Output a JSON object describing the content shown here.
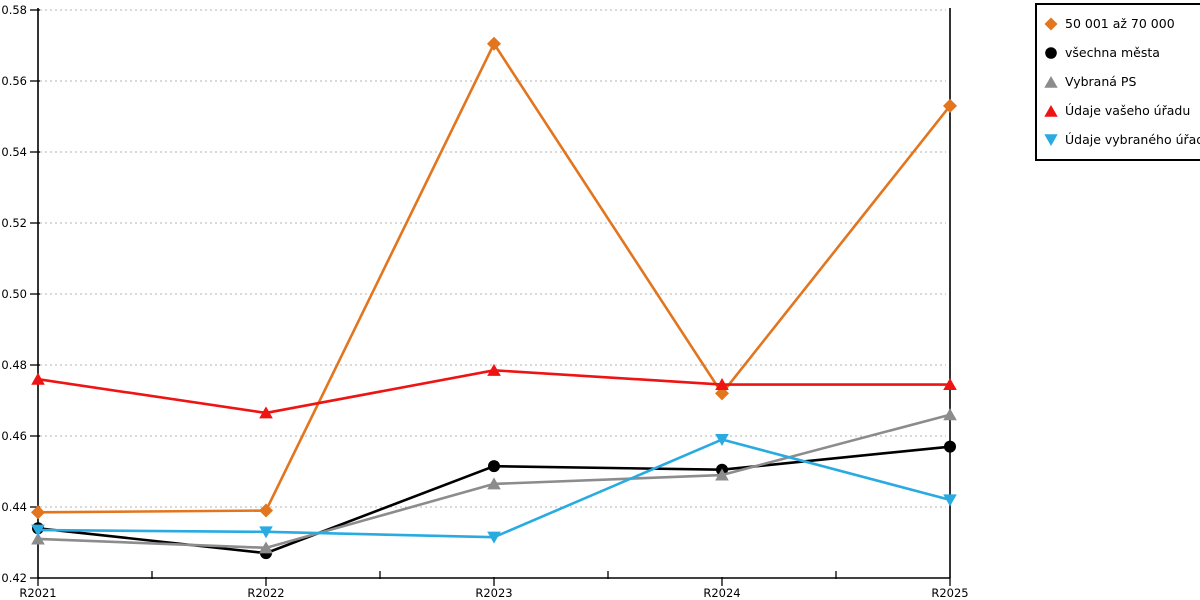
{
  "chart_data": {
    "type": "line",
    "title": "",
    "xlabel": "",
    "ylabel": "",
    "categories": [
      "R2021",
      "R2022",
      "R2023",
      "R2024",
      "R2025"
    ],
    "y_axis": {
      "min": 0.42,
      "max": 0.58,
      "tick_step": 0.02,
      "tick_labels": [
        "0.42",
        "0.44",
        "0.46",
        "0.48",
        "0.50",
        "0.52",
        "0.54",
        "0.56",
        "0.58"
      ]
    },
    "grid": "horizontal-dotted",
    "grid_color": "#b3b3b3",
    "axis_color": "#000000",
    "legend_position": "top-right",
    "legend_border_color": "#000000",
    "series": [
      {
        "name": "50 001 až 70 000",
        "color": "#e2751d",
        "marker": "diamond",
        "values": [
          0.4385,
          0.439,
          0.5705,
          0.472,
          0.553
        ]
      },
      {
        "name": "všechna města",
        "color": "#000000",
        "marker": "circle",
        "values": [
          0.434,
          0.427,
          0.4515,
          0.4505,
          0.457
        ]
      },
      {
        "name": "Vybraná PS",
        "color": "#8c8c8c",
        "marker": "triangle-up",
        "values": [
          0.431,
          0.4285,
          0.4465,
          0.449,
          0.466
        ]
      },
      {
        "name": "Údaje vašeho úřadu",
        "color": "#ee1414",
        "marker": "triangle-up",
        "values": [
          0.476,
          0.4665,
          0.4785,
          0.4745,
          0.4745
        ]
      },
      {
        "name": "Údaje vybraného úřadu",
        "color": "#29abe2",
        "marker": "triangle-down",
        "values": [
          0.4335,
          0.433,
          0.4315,
          0.459,
          0.442
        ]
      }
    ]
  }
}
